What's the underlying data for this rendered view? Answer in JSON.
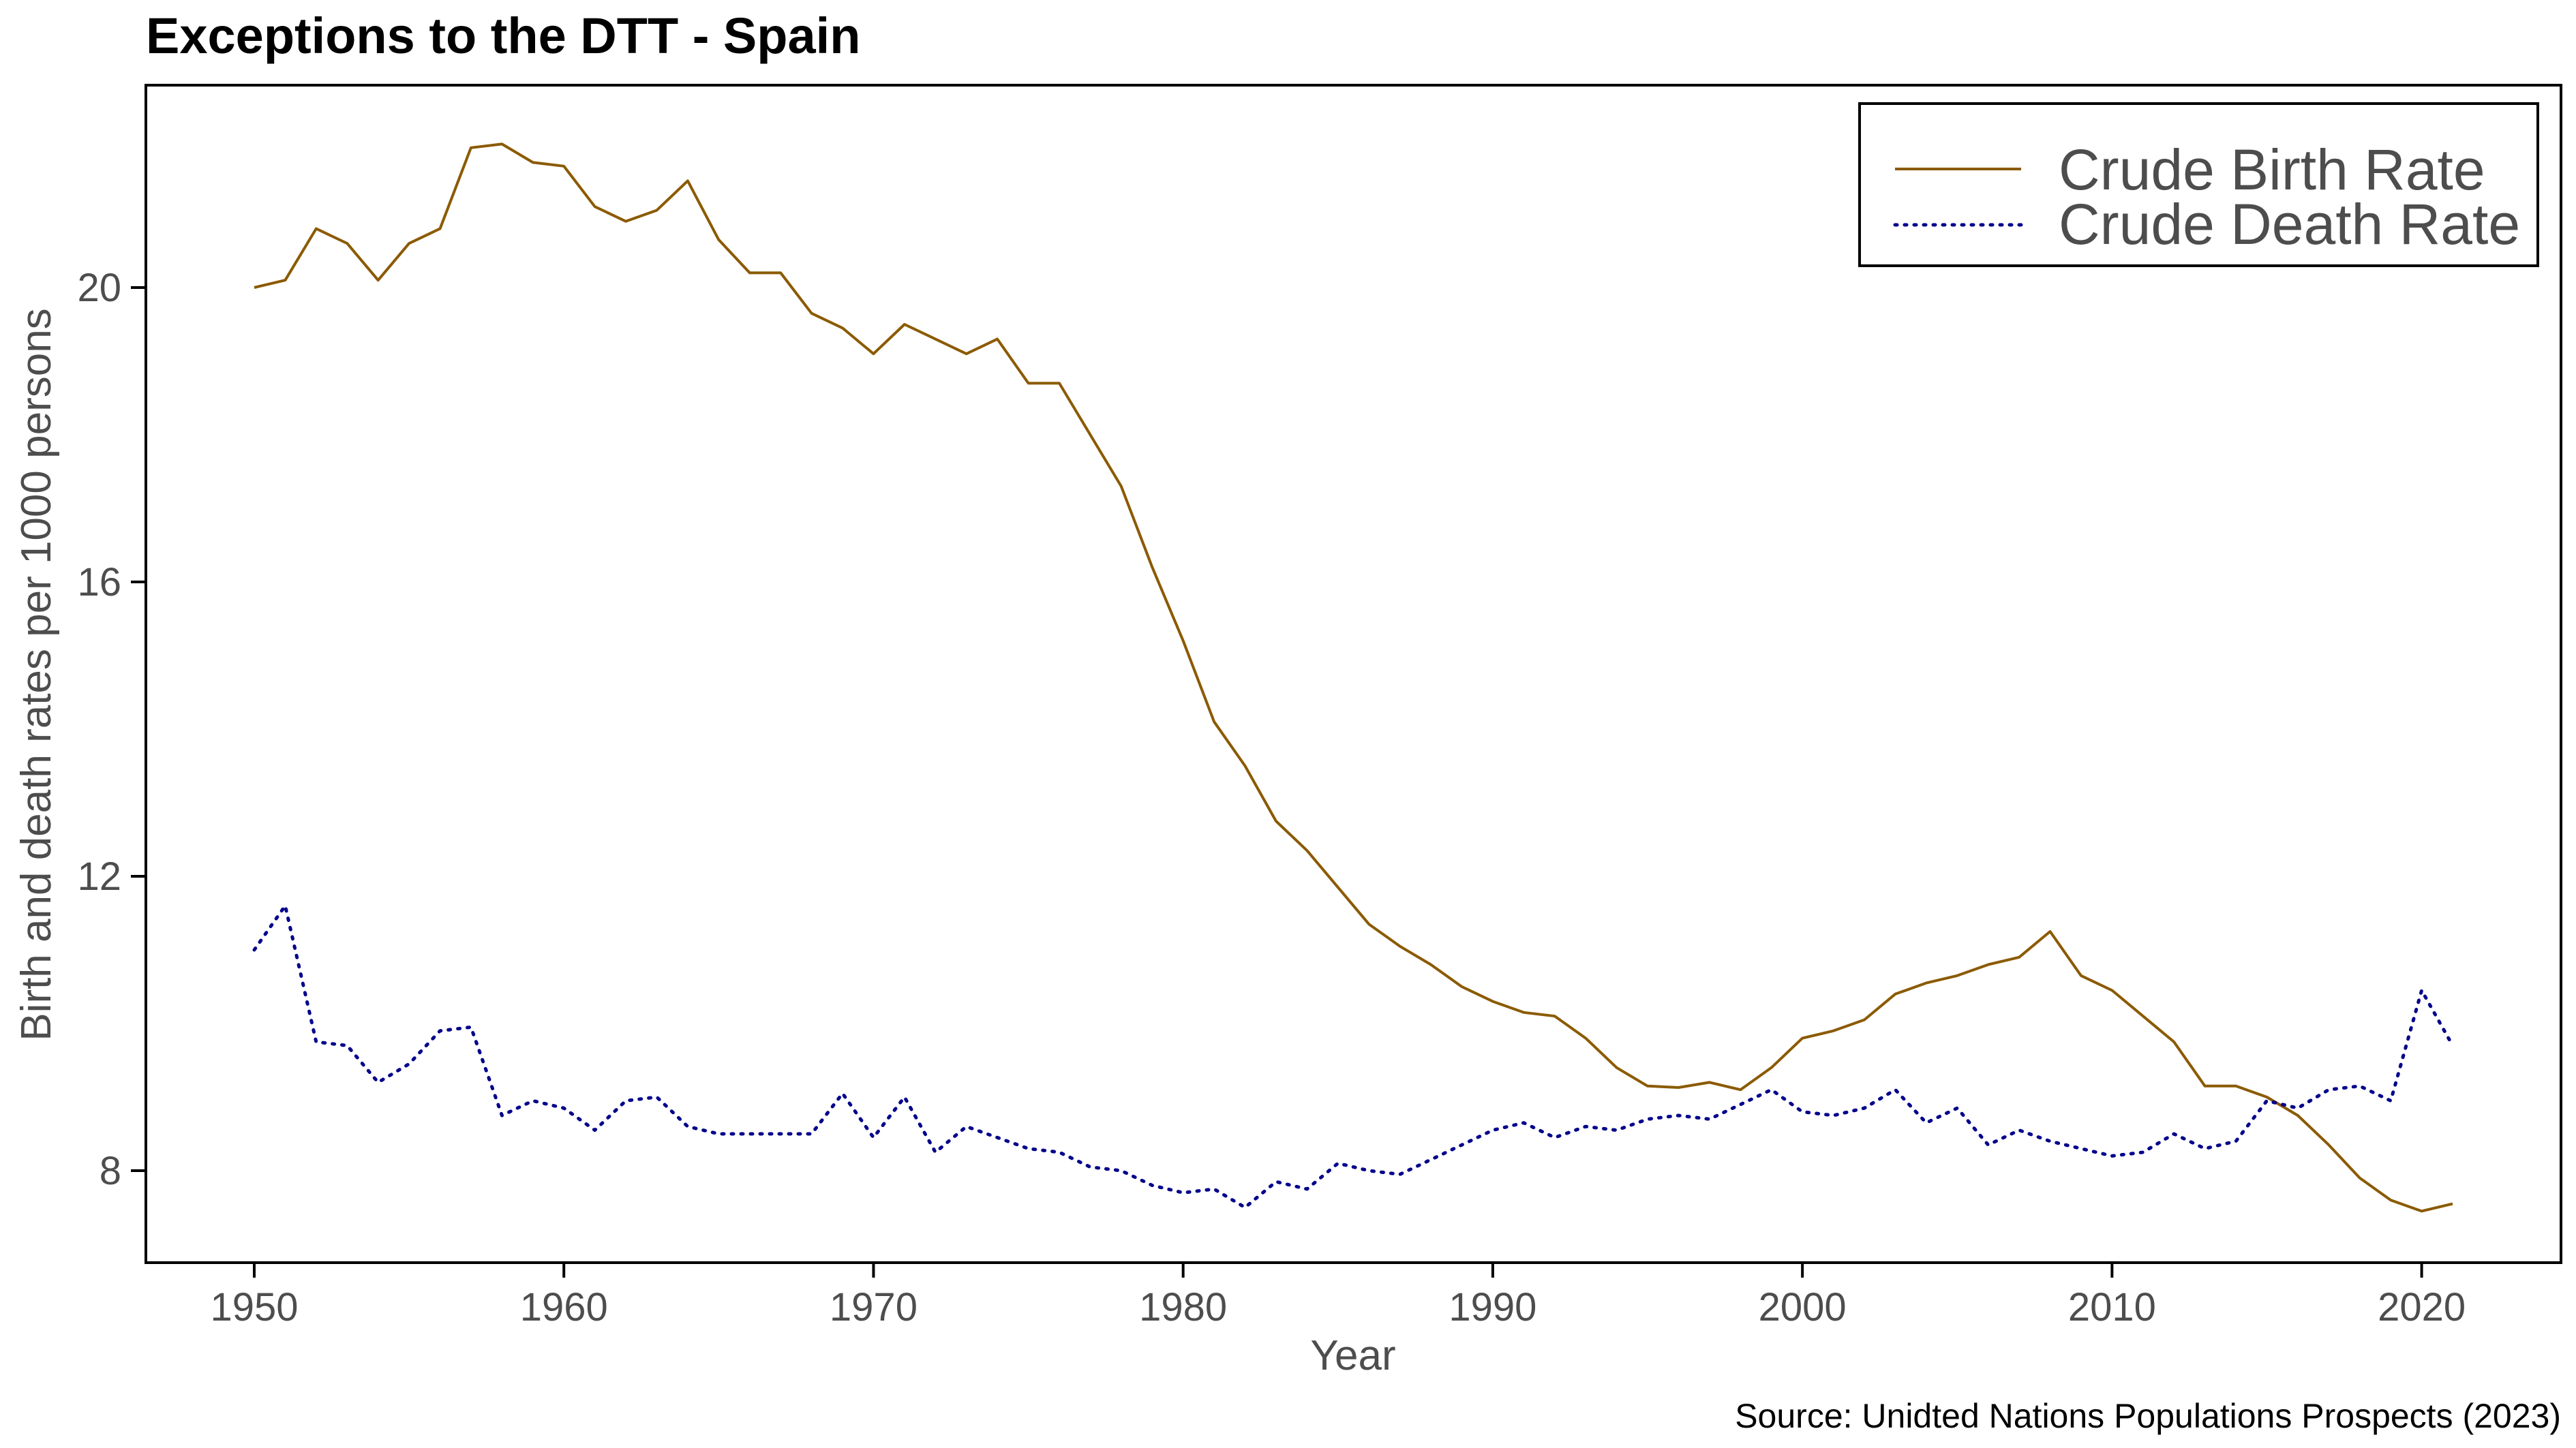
{
  "chart_data": {
    "type": "line",
    "title": "Exceptions to the DTT - Spain",
    "xlabel": "Year",
    "ylabel": "Birth and death rates per 1000 persons",
    "caption": "Source: Unidted Nations Populations Prospects (2023)",
    "xlim": [
      1946.5,
      2024.5
    ],
    "ylim": [
      6.75,
      22.75
    ],
    "xticks": [
      1950,
      1960,
      1970,
      1980,
      1990,
      2000,
      2010,
      2020
    ],
    "yticks": [
      8,
      12,
      16,
      20
    ],
    "grid": false,
    "legend_position": "top-right",
    "x": [
      1950,
      1951,
      1952,
      1953,
      1954,
      1955,
      1956,
      1957,
      1958,
      1959,
      1960,
      1961,
      1962,
      1963,
      1964,
      1965,
      1966,
      1967,
      1968,
      1969,
      1970,
      1971,
      1972,
      1973,
      1974,
      1975,
      1976,
      1977,
      1978,
      1979,
      1980,
      1981,
      1982,
      1983,
      1984,
      1985,
      1986,
      1987,
      1988,
      1989,
      1990,
      1991,
      1992,
      1993,
      1994,
      1995,
      1996,
      1997,
      1998,
      1999,
      2000,
      2001,
      2002,
      2003,
      2004,
      2005,
      2006,
      2007,
      2008,
      2009,
      2010,
      2011,
      2012,
      2013,
      2014,
      2015,
      2016,
      2017,
      2018,
      2019,
      2020,
      2021
    ],
    "series": [
      {
        "name": "Crude Birth Rate",
        "color": "#8B5A00",
        "style": "solid",
        "values": [
          20.0,
          20.1,
          20.8,
          20.6,
          20.1,
          20.6,
          20.8,
          21.9,
          21.95,
          21.7,
          21.65,
          21.1,
          20.9,
          21.05,
          21.45,
          20.65,
          20.2,
          20.2,
          19.65,
          19.45,
          19.1,
          19.5,
          19.3,
          19.1,
          19.3,
          18.7,
          18.7,
          18.0,
          17.3,
          16.2,
          15.2,
          14.1,
          13.5,
          12.75,
          12.35,
          11.85,
          11.35,
          11.05,
          10.8,
          10.5,
          10.3,
          10.15,
          10.1,
          9.8,
          9.4,
          9.15,
          9.13,
          9.2,
          9.1,
          9.4,
          9.8,
          9.9,
          10.05,
          10.4,
          10.55,
          10.65,
          10.8,
          10.9,
          11.25,
          10.65,
          10.45,
          10.1,
          9.75,
          9.15,
          9.15,
          9.0,
          8.75,
          8.35,
          7.9,
          7.6,
          7.45,
          7.55
        ]
      },
      {
        "name": "Crude Death Rate",
        "color": "#00008B",
        "style": "dotted",
        "values": [
          11.0,
          11.6,
          9.75,
          9.7,
          9.2,
          9.45,
          9.9,
          9.95,
          8.75,
          8.95,
          8.85,
          8.55,
          8.95,
          9.0,
          8.6,
          8.5,
          8.5,
          8.5,
          8.5,
          9.05,
          8.45,
          9.0,
          8.25,
          8.6,
          8.45,
          8.3,
          8.25,
          8.05,
          8.0,
          7.8,
          7.7,
          7.75,
          7.5,
          7.85,
          7.75,
          8.1,
          8.0,
          7.95,
          8.15,
          8.35,
          8.55,
          8.65,
          8.45,
          8.6,
          8.55,
          8.7,
          8.75,
          8.7,
          8.9,
          9.1,
          8.8,
          8.75,
          8.85,
          9.1,
          8.65,
          8.85,
          8.35,
          8.55,
          8.4,
          8.3,
          8.2,
          8.25,
          8.5,
          8.3,
          8.4,
          8.95,
          8.85,
          9.1,
          9.15,
          8.95,
          10.45,
          9.7
        ]
      }
    ]
  }
}
